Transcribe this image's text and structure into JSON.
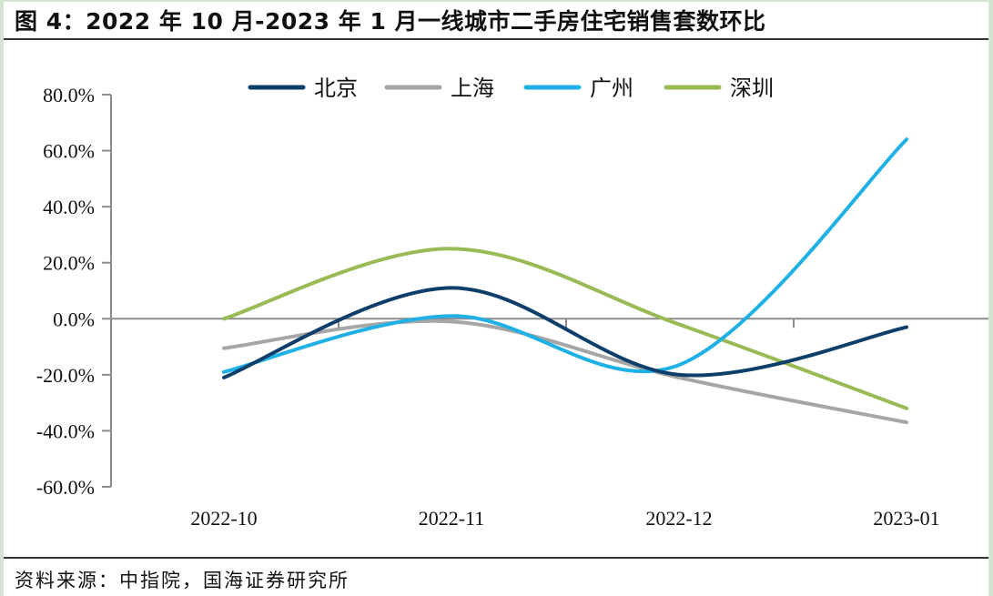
{
  "title": "图 4：2022 年 10 月-2023 年 1 月一线城市二手房住宅销售套数环比",
  "source": "资料来源：中指院，国海证券研究所",
  "chart_data": {
    "type": "line",
    "title": "2022 年 10 月-2023 年 1 月一线城市二手房住宅销售套数环比",
    "xlabel": "",
    "ylabel": "",
    "categories": [
      "2022-10",
      "2022-11",
      "2022-12",
      "2023-01"
    ],
    "ylim": [
      -60,
      80
    ],
    "yticks": [
      80,
      60,
      40,
      20,
      0,
      -20,
      -40,
      -60
    ],
    "ytick_labels": [
      "80.0%",
      "60.0%",
      "40.0%",
      "20.0%",
      "0.0%",
      "-20.0%",
      "-40.0%",
      "-60.0%"
    ],
    "grid": false,
    "smooth": true,
    "legend_position": "top-center",
    "series": [
      {
        "name": "北京",
        "color": "#0e3f6b",
        "values": [
          -21.0,
          11.0,
          -20.0,
          -3.0
        ]
      },
      {
        "name": "上海",
        "color": "#a6a6a6",
        "values": [
          -10.5,
          -1.0,
          -21.0,
          -37.0
        ]
      },
      {
        "name": "广州",
        "color": "#1fb1e6",
        "values": [
          -19.0,
          1.0,
          -16.5,
          64.0
        ]
      },
      {
        "name": "深圳",
        "color": "#99bb55",
        "values": [
          0.0,
          25.0,
          -2.0,
          -32.0
        ]
      }
    ]
  }
}
